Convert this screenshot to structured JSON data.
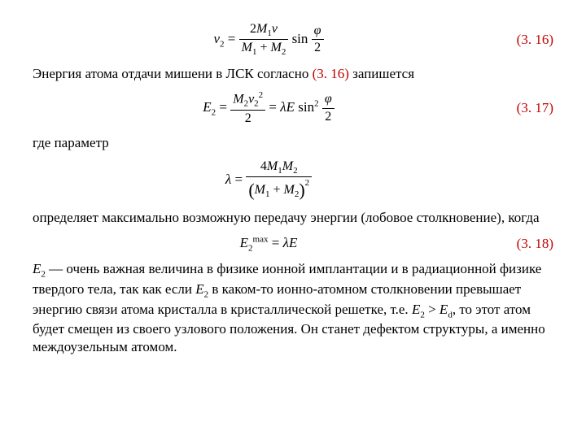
{
  "eq316": {
    "num": "(3. 16)",
    "lhs": "v",
    "lhs_sub": "2",
    "frac_top_a": "2",
    "frac_top_b": "M",
    "frac_top_b_sub": "1",
    "frac_top_c": "v",
    "frac_bot_a": "M",
    "frac_bot_a_sub": "1",
    "plus": " + ",
    "frac_bot_b": "M",
    "frac_bot_b_sub": "2",
    "sin": "sin",
    "phi": "φ",
    "two": "2"
  },
  "para1": {
    "text_a": "Энергия атома отдачи мишени в ЛСК согласно ",
    "ref": "(3. 16)",
    "text_b": " запишется"
  },
  "eq317": {
    "num": "(3. 17)",
    "E": "E",
    "E_sub": "2",
    "eq": " = ",
    "top_M": "M",
    "top_M_sub": "2",
    "top_v": "v",
    "top_v_sub": "2",
    "top_sq": "2",
    "bot": "2",
    "lam": "λ",
    "Eplain": "E",
    "sin": "sin",
    "sin_sup": "2",
    "phi": "φ",
    "two2": "2"
  },
  "para2": {
    "text": "где параметр"
  },
  "eqlam": {
    "lam": "λ",
    "eq": " = ",
    "top4": "4",
    "topM1": "M",
    "topM1_sub": "1",
    "topM2": "M",
    "topM2_sub": "2",
    "lpar": "(",
    "botM1": "M",
    "botM1_sub": "1",
    "plus": " + ",
    "botM2": "M",
    "botM2_sub": "2",
    "rpar": ")",
    "sq": "2"
  },
  "para3": {
    "text": "определяет максимально возможную передачу энергии (лобовое столкновение), когда"
  },
  "eq318": {
    "num": "(3. 18)",
    "E": "E",
    "sub": "2",
    "sup": "max",
    "eq": " = ",
    "lam": "λ",
    "E2": "E"
  },
  "para4": {
    "t1": "E",
    "t1_sub": "2",
    "t2": " — очень важная величина в физике ионной имплантации и в радиационной физике твердого тела, так как если ",
    "t3": "E",
    "t3_sub": "2",
    "t4": " в каком-то ионно-атомном столкновении превышает энергию связи атома кристалла в кристаллической решетке, т.е. ",
    "t5": "E",
    "t5_sub": "2",
    "gt": " > ",
    "t6": "E",
    "t6_sub": "d",
    "t7": ", то этот атом будет смещен из своего узлового положения. Он станет дефектом структуры, а именно междоузельным атомом."
  },
  "colors": {
    "ref": "#c00000",
    "text": "#000000",
    "bg": "#ffffff"
  },
  "fonts": {
    "body_size": 17,
    "math_size": 17,
    "sub_size": 11
  }
}
